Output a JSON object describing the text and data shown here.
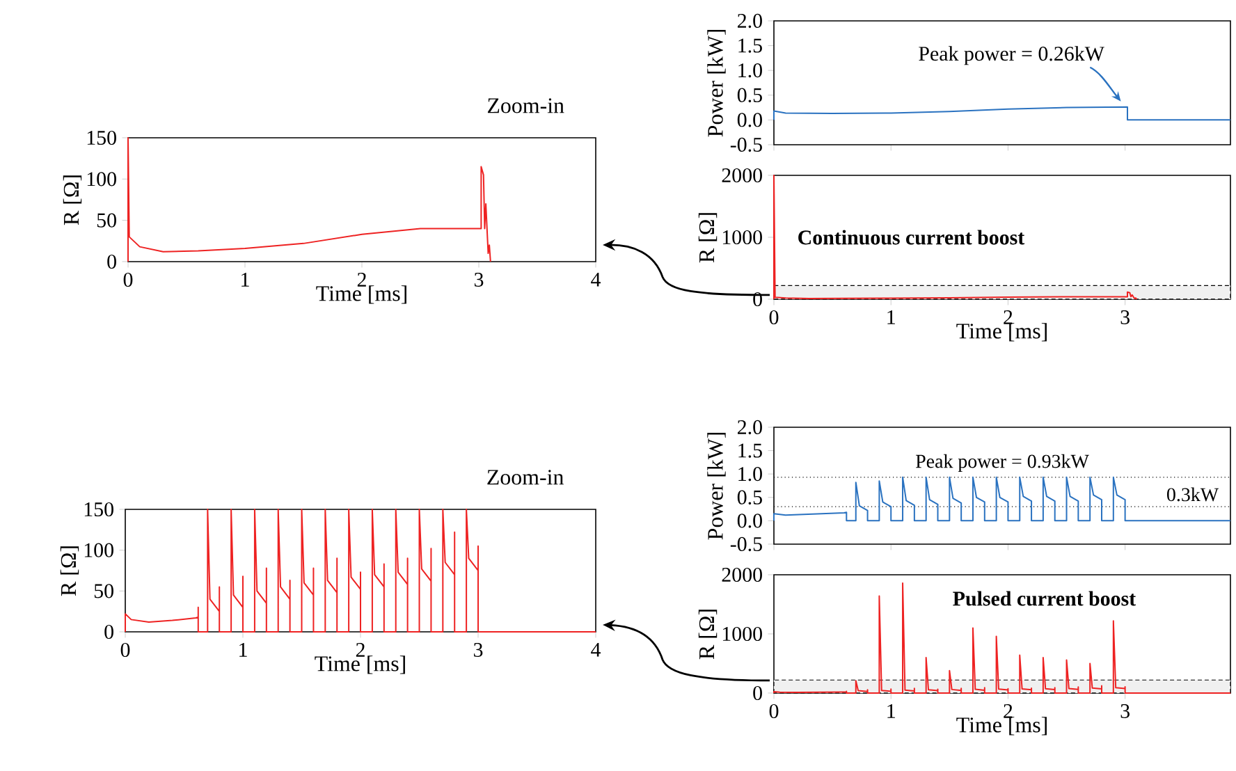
{
  "chart_data": [
    {
      "type": "line",
      "title": "Zoom-in",
      "xlabel": "Time [ms]",
      "ylabel": "R [Ω]",
      "xlim": [
        0,
        4
      ],
      "xticks": [
        0,
        1,
        2,
        3,
        4
      ],
      "ylim": [
        0,
        150
      ],
      "yticks": [
        0,
        50,
        100,
        150
      ],
      "x": [
        0,
        0,
        0.01,
        0.1,
        0.3,
        0.6,
        1,
        1.5,
        2,
        2.5,
        3,
        3.02,
        3.02,
        3.04,
        3.05,
        3.06,
        3.08,
        3.09,
        3.1
      ],
      "series": [
        {
          "color": "#ee2222",
          "values": [
            0,
            150,
            30,
            18,
            12,
            13,
            16,
            22,
            33,
            40,
            40,
            40,
            115,
            105,
            40,
            70,
            10,
            20,
            0
          ]
        }
      ]
    },
    {
      "type": "line",
      "ylabel": "Power [kW]",
      "xlim": [
        0,
        3.9
      ],
      "xticks": [
        0,
        1,
        2,
        3
      ],
      "ylim": [
        -0.5,
        2.0
      ],
      "yticks": [
        -0.5,
        {
          "value": 0,
          "label": "0.0"
        },
        0.5,
        {
          "value": 1,
          "label": "1.0"
        },
        1.5,
        {
          "value": 2,
          "label": "2.0"
        }
      ],
      "tick_labels": "y",
      "x": [
        0,
        0,
        0.1,
        0.5,
        1,
        1.5,
        2,
        2.5,
        3.02,
        3.02,
        3.9
      ],
      "series": [
        {
          "color": "#2a72c0",
          "values": [
            0,
            0.18,
            0.14,
            0.13,
            0.14,
            0.17,
            0.22,
            0.25,
            0.26,
            0,
            0
          ]
        }
      ],
      "annotations": [
        {
          "text": "Peak power = 0.26kW",
          "x": 3.0,
          "y": 0.26
        }
      ]
    },
    {
      "type": "line",
      "xlabel": "Time [ms]",
      "ylabel": "R [Ω]",
      "xlim": [
        0,
        3.9
      ],
      "xticks": [
        0,
        1,
        2,
        3
      ],
      "ylim": [
        0,
        2000
      ],
      "yticks": [
        0,
        1000,
        2000
      ],
      "x": [
        0,
        0,
        0.01,
        0.1,
        0.3,
        0.6,
        1,
        1.5,
        2,
        2.5,
        3,
        3.02,
        3.02,
        3.04,
        3.05,
        3.06,
        3.08,
        3.09,
        3.1
      ],
      "series": [
        {
          "color": "#ee2222",
          "values": [
            0,
            2000,
            30,
            18,
            12,
            13,
            16,
            22,
            33,
            40,
            40,
            40,
            115,
            105,
            40,
            70,
            10,
            20,
            0
          ]
        }
      ],
      "bands": [
        {
          "axis": "y",
          "from": 0,
          "to": 220,
          "color": "#000000"
        }
      ],
      "annotations": [
        "Continuous current boost"
      ]
    },
    {
      "type": "line",
      "title": "Zoom-in",
      "xlabel": "Time [ms]",
      "ylabel": "R [Ω]",
      "xlim": [
        0,
        4
      ],
      "xticks": [
        0,
        1,
        2,
        3,
        4
      ],
      "ylim": [
        0,
        150
      ],
      "yticks": [
        0,
        50,
        100,
        150
      ],
      "x": [
        0,
        0,
        0.05,
        0.2,
        0.4,
        0.6,
        0.62,
        0.62,
        0.62,
        0.7,
        0.7,
        0.72,
        0.8,
        0.8,
        0.8,
        0.9,
        0.9,
        0.92,
        1.0,
        1.0,
        1.0,
        1.1,
        1.1,
        1.12,
        1.2,
        1.2,
        1.2,
        1.3,
        1.3,
        1.32,
        1.4,
        1.4,
        1.4,
        1.5,
        1.5,
        1.52,
        1.6,
        1.6,
        1.6,
        1.7,
        1.7,
        1.72,
        1.8,
        1.8,
        1.8,
        1.9,
        1.9,
        1.92,
        2.0,
        2.0,
        2.0,
        2.1,
        2.1,
        2.12,
        2.2,
        2.2,
        2.2,
        2.3,
        2.3,
        2.32,
        2.4,
        2.4,
        2.4,
        2.5,
        2.5,
        2.52,
        2.6,
        2.6,
        2.6,
        2.7,
        2.7,
        2.72,
        2.8,
        2.8,
        2.8,
        2.9,
        2.9,
        2.92,
        3.0,
        3.0,
        3.0,
        4
      ],
      "series": [
        {
          "color": "#ee2222",
          "values": [
            0,
            22,
            15,
            12,
            14,
            17,
            18,
            30,
            0,
            0,
            150,
            40,
            25,
            55,
            0,
            0,
            150,
            45,
            30,
            68,
            0,
            0,
            150,
            50,
            35,
            78,
            0,
            0,
            150,
            55,
            40,
            63,
            0,
            0,
            150,
            60,
            45,
            78,
            0,
            0,
            150,
            63,
            48,
            90,
            0,
            0,
            150,
            67,
            52,
            73,
            0,
            0,
            150,
            70,
            55,
            83,
            0,
            0,
            150,
            73,
            58,
            90,
            0,
            0,
            150,
            77,
            62,
            102,
            0,
            0,
            150,
            85,
            70,
            122,
            0,
            0,
            150,
            90,
            75,
            105,
            0,
            0
          ]
        }
      ]
    },
    {
      "type": "line",
      "ylabel": "Power [kW]",
      "xlim": [
        0,
        3.9
      ],
      "xticks": [
        0,
        1,
        2,
        3
      ],
      "ylim": [
        -0.5,
        2.0
      ],
      "yticks": [
        -0.5,
        {
          "value": 0,
          "label": "0.0"
        },
        0.5,
        {
          "value": 1,
          "label": "1.0"
        },
        1.5,
        {
          "value": 2,
          "label": "2.0"
        }
      ],
      "tick_labels": "y",
      "x": [
        0,
        0,
        0.1,
        0.3,
        0.6,
        0.62,
        0.62,
        0.7,
        0.7,
        0.73,
        0.8,
        0.8,
        0.9,
        0.9,
        0.93,
        1.0,
        1.0,
        1.1,
        1.1,
        1.13,
        1.2,
        1.2,
        1.3,
        1.3,
        1.33,
        1.4,
        1.4,
        1.5,
        1.5,
        1.53,
        1.6,
        1.6,
        1.7,
        1.7,
        1.73,
        1.8,
        1.8,
        1.9,
        1.9,
        1.93,
        2.0,
        2.0,
        2.1,
        2.1,
        2.13,
        2.2,
        2.2,
        2.3,
        2.3,
        2.33,
        2.4,
        2.4,
        2.5,
        2.5,
        2.53,
        2.6,
        2.6,
        2.7,
        2.7,
        2.73,
        2.8,
        2.8,
        2.9,
        2.9,
        2.93,
        3.0,
        3.0,
        3.9
      ],
      "series": [
        {
          "color": "#2a72c0",
          "values": [
            0,
            0.15,
            0.12,
            0.14,
            0.17,
            0.18,
            0,
            0,
            0.82,
            0.32,
            0.22,
            0,
            0,
            0.85,
            0.4,
            0.3,
            0,
            0,
            0.93,
            0.43,
            0.33,
            0,
            0,
            0.93,
            0.45,
            0.35,
            0,
            0,
            0.93,
            0.48,
            0.38,
            0,
            0,
            0.93,
            0.5,
            0.4,
            0,
            0,
            0.93,
            0.5,
            0.4,
            0,
            0,
            0.93,
            0.52,
            0.42,
            0,
            0,
            0.93,
            0.52,
            0.42,
            0,
            0,
            0.93,
            0.52,
            0.42,
            0,
            0,
            0.93,
            0.55,
            0.45,
            0,
            0,
            0.93,
            0.55,
            0.45,
            0,
            0
          ]
        }
      ],
      "ref_lines": [
        {
          "axis": "y",
          "value": 0.93,
          "label": "Peak power = 0.93kW",
          "line_style": "dotted"
        },
        {
          "axis": "y",
          "value": 0.3,
          "label": "0.3kW",
          "line_style": "dotted"
        }
      ]
    },
    {
      "type": "line",
      "xlabel": "Time [ms]",
      "ylabel": "R [Ω]",
      "xlim": [
        0,
        3.9
      ],
      "xticks": [
        0,
        1,
        2,
        3
      ],
      "ylim": [
        0,
        2000
      ],
      "yticks": [
        0,
        1000,
        2000
      ],
      "x": [
        0,
        0,
        0.05,
        0.2,
        0.4,
        0.6,
        0.62,
        0.62,
        0.62,
        0.7,
        0.7,
        0.72,
        0.8,
        0.8,
        0.8,
        0.9,
        0.9,
        0.92,
        1.0,
        1.0,
        1.0,
        1.1,
        1.1,
        1.12,
        1.2,
        1.2,
        1.2,
        1.3,
        1.3,
        1.32,
        1.4,
        1.4,
        1.4,
        1.5,
        1.5,
        1.52,
        1.6,
        1.6,
        1.6,
        1.7,
        1.7,
        1.72,
        1.8,
        1.8,
        1.8,
        1.9,
        1.9,
        1.92,
        2.0,
        2.0,
        2.0,
        2.1,
        2.1,
        2.12,
        2.2,
        2.2,
        2.2,
        2.3,
        2.3,
        2.32,
        2.4,
        2.4,
        2.4,
        2.5,
        2.5,
        2.52,
        2.6,
        2.6,
        2.6,
        2.7,
        2.7,
        2.72,
        2.8,
        2.8,
        2.8,
        2.9,
        2.9,
        2.92,
        3.0,
        3.0,
        3.0,
        3.9
      ],
      "series": [
        {
          "color": "#ee2222",
          "values": [
            0,
            22,
            15,
            12,
            14,
            17,
            18,
            30,
            0,
            0,
            210,
            40,
            25,
            55,
            0,
            0,
            1640,
            45,
            30,
            68,
            0,
            0,
            1860,
            50,
            35,
            78,
            0,
            0,
            600,
            55,
            40,
            63,
            0,
            0,
            380,
            60,
            45,
            78,
            0,
            0,
            1100,
            63,
            48,
            90,
            0,
            0,
            960,
            67,
            52,
            73,
            0,
            0,
            640,
            70,
            55,
            83,
            0,
            0,
            600,
            73,
            58,
            90,
            0,
            0,
            560,
            77,
            62,
            102,
            0,
            0,
            500,
            85,
            70,
            122,
            0,
            0,
            1220,
            90,
            75,
            105,
            0,
            0
          ]
        }
      ],
      "bands": [
        {
          "axis": "y",
          "from": 0,
          "to": 220,
          "color": "#000000"
        }
      ],
      "annotations": [
        "Pulsed current boost"
      ]
    }
  ]
}
